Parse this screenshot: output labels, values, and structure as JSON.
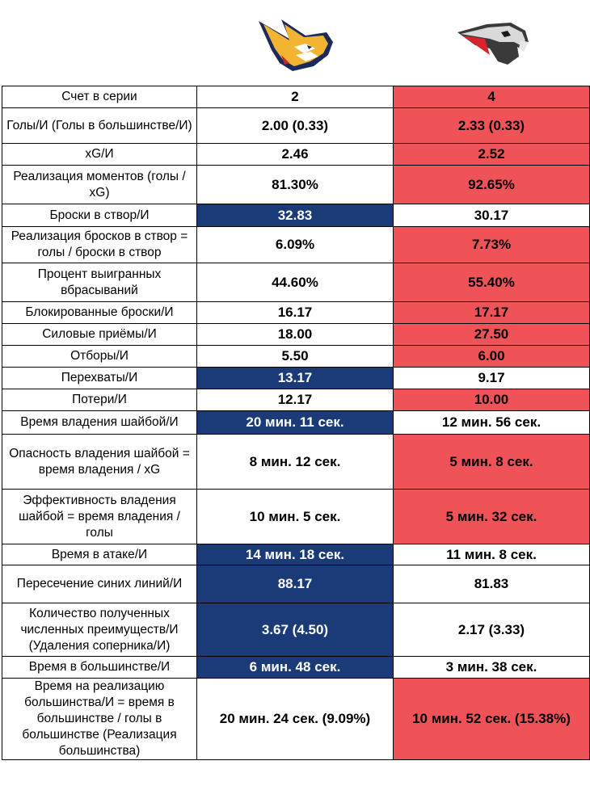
{
  "colors": {
    "blue": "#1b3a78",
    "red": "#ef5358",
    "white": "#ffffff"
  },
  "header": {
    "left_logo_icon": "metallurg-logo-icon",
    "right_logo_icon": "avangard-hawk-logo-icon"
  },
  "rows": [
    {
      "label": "Счет в серии",
      "left": "2",
      "right": "4",
      "left_bg": "white",
      "right_bg": "red"
    },
    {
      "label": "Голы/И (Голы в большинстве/И)",
      "left": "2.00 (0.33)",
      "right": "2.33 (0.33)",
      "left_bg": "white",
      "right_bg": "red"
    },
    {
      "label": "xG/И",
      "left": "2.46",
      "right": "2.52",
      "left_bg": "white",
      "right_bg": "red"
    },
    {
      "label": "Реализация моментов (голы / xG)",
      "left": "81.30%",
      "right": "92.65%",
      "left_bg": "white",
      "right_bg": "red"
    },
    {
      "label": "Броски в створ/И",
      "left": "32.83",
      "right": "30.17",
      "left_bg": "blue",
      "right_bg": "white"
    },
    {
      "label": "Реализация бросков в створ = голы / броски в створ",
      "left": "6.09%",
      "right": "7.73%",
      "left_bg": "white",
      "right_bg": "red"
    },
    {
      "label": "Процент выигранных вбрасываний",
      "left": "44.60%",
      "right": "55.40%",
      "left_bg": "white",
      "right_bg": "red"
    },
    {
      "label": "Блокированные броски/И",
      "left": "16.17",
      "right": "17.17",
      "left_bg": "white",
      "right_bg": "red"
    },
    {
      "label": "Силовые приёмы/И",
      "left": "18.00",
      "right": "27.50",
      "left_bg": "white",
      "right_bg": "red"
    },
    {
      "label": "Отборы/И",
      "left": "5.50",
      "right": "6.00",
      "left_bg": "white",
      "right_bg": "red"
    },
    {
      "label": "Перехваты/И",
      "left": "13.17",
      "right": "9.17",
      "left_bg": "blue",
      "right_bg": "white"
    },
    {
      "label": "Потери/И",
      "left": "12.17",
      "right": "10.00",
      "left_bg": "white",
      "right_bg": "red"
    },
    {
      "label": "Время владения шайбой/И",
      "left": "20 мин. 11 сек.",
      "right": "12 мин. 56 сек.",
      "left_bg": "blue",
      "right_bg": "white"
    },
    {
      "label": "Опасность владения шайбой = время владения / xG",
      "left": "8 мин. 12 сек.",
      "right": "5 мин. 8 сек.",
      "left_bg": "white",
      "right_bg": "red"
    },
    {
      "label": "Эффективность владения шайбой = время владения / голы",
      "left": "10 мин. 5 сек.",
      "right": "5 мин. 32 сек.",
      "left_bg": "white",
      "right_bg": "red"
    },
    {
      "label": "Время в атаке/И",
      "left": "14 мин. 18 сек.",
      "right": "11 мин. 8 сек.",
      "left_bg": "blue",
      "right_bg": "white"
    },
    {
      "label": "Пересечение синих линий/И",
      "left": "88.17",
      "right": "81.83",
      "left_bg": "blue",
      "right_bg": "white"
    },
    {
      "label": "Количество полученных численных преимуществ/И (Удаления соперника/И)",
      "left": "3.67 (4.50)",
      "right": "2.17 (3.33)",
      "left_bg": "blue",
      "right_bg": "white"
    },
    {
      "label": "Время в большинстве/И",
      "left": "6 мин. 48 сек.",
      "right": "3 мин. 38 сек.",
      "left_bg": "blue",
      "right_bg": "white"
    },
    {
      "label": "Время на реализацию большинства/И = время в большинстве / голы в большинстве (Реализация большинства)",
      "left": "20 мин. 24 сек. (9.09%)",
      "right": "10 мин. 52 сек. (15.38%)",
      "left_bg": "white",
      "right_bg": "red"
    }
  ]
}
